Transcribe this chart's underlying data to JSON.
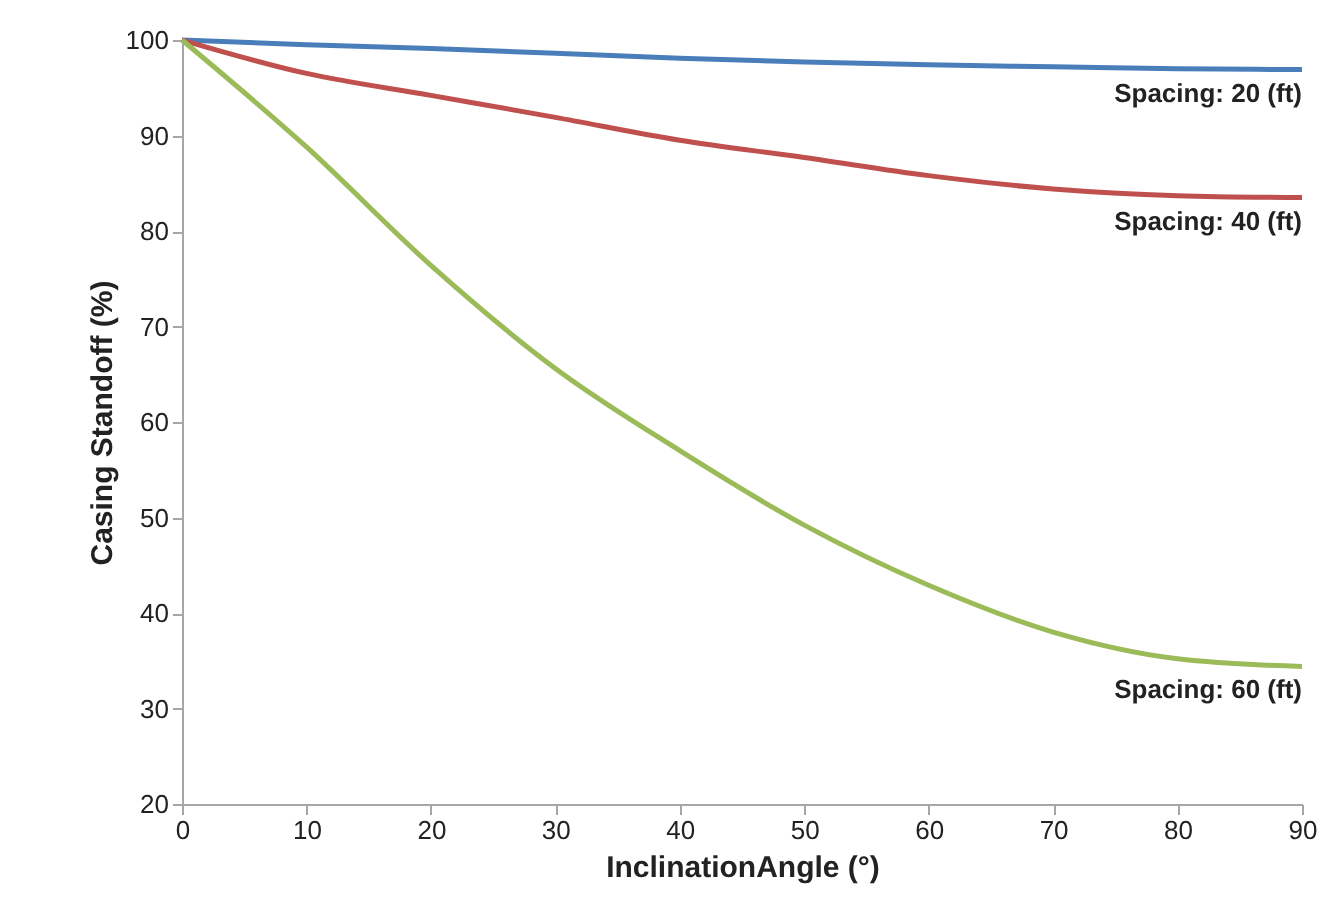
{
  "chart_data": {
    "type": "line",
    "xlabel": "InclinationAngle (°)",
    "ylabel": "Casing Standoff (%)",
    "x": [
      0,
      10,
      20,
      30,
      40,
      50,
      60,
      70,
      80,
      90
    ],
    "series": [
      {
        "name": "Spacing: 20 (ft)",
        "color": "#4a7ebb",
        "values": [
          100,
          99.5,
          99.1,
          98.6,
          98.1,
          97.7,
          97.4,
          97.2,
          97.0,
          96.9
        ]
      },
      {
        "name": "Spacing: 40 (ft)",
        "color": "#c0504d",
        "values": [
          100,
          96.5,
          94.2,
          91.9,
          89.5,
          87.7,
          85.8,
          84.4,
          83.7,
          83.5
        ]
      },
      {
        "name": "Spacing: 60 (ft)",
        "color": "#9bbb59",
        "values": [
          100,
          88.8,
          76.4,
          65.6,
          57,
          49.2,
          42.9,
          38,
          35.2,
          34.4
        ]
      }
    ],
    "xlim": [
      0,
      90
    ],
    "xticks": [
      0,
      10,
      20,
      30,
      40,
      50,
      60,
      70,
      80,
      90
    ],
    "ylim": [
      20,
      100
    ],
    "yticks": [
      20,
      30,
      40,
      50,
      60,
      70,
      80,
      90,
      100
    ],
    "grid": false,
    "marker": "none",
    "line_style": "solid"
  }
}
